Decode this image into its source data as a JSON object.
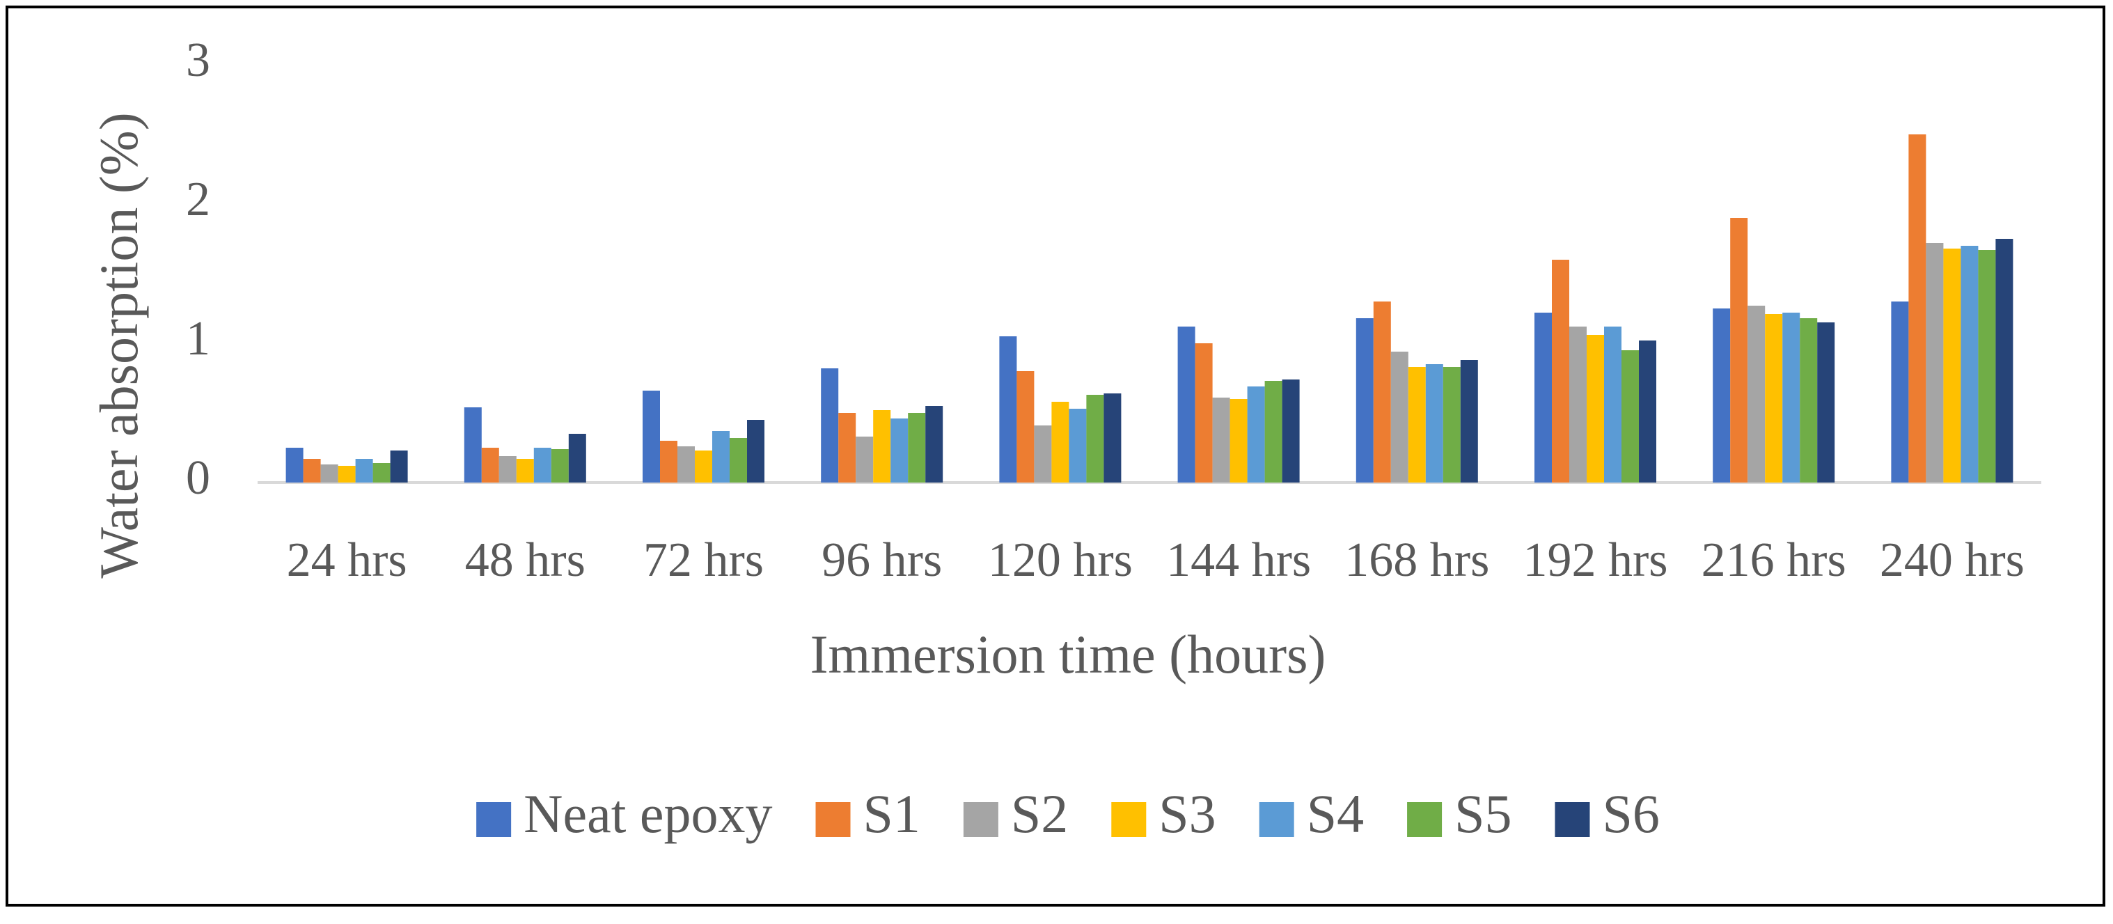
{
  "chart_data": {
    "type": "bar",
    "xlabel": "Immersion time (hours)",
    "ylabel": "Water absorption (%)",
    "categories": [
      "24 hrs",
      "48 hrs",
      "72 hrs",
      "96 hrs",
      "120 hrs",
      "144 hrs",
      "168 hrs",
      "192 hrs",
      "216 hrs",
      "240 hrs"
    ],
    "series": [
      {
        "name": "Neat epoxy",
        "color": "#4472c4",
        "values": [
          0.25,
          0.54,
          0.66,
          0.82,
          1.05,
          1.12,
          1.18,
          1.22,
          1.25,
          1.3
        ]
      },
      {
        "name": "S1",
        "color": "#ed7d31",
        "values": [
          0.17,
          0.25,
          0.3,
          0.5,
          0.8,
          1.0,
          1.3,
          1.6,
          1.9,
          2.5
        ]
      },
      {
        "name": "S2",
        "color": "#a5a5a5",
        "values": [
          0.13,
          0.19,
          0.26,
          0.33,
          0.41,
          0.61,
          0.94,
          1.12,
          1.27,
          1.72
        ]
      },
      {
        "name": "S3",
        "color": "#ffc000",
        "values": [
          0.12,
          0.17,
          0.23,
          0.52,
          0.58,
          0.6,
          0.83,
          1.06,
          1.21,
          1.68
        ]
      },
      {
        "name": "S4",
        "color": "#5b9bd5",
        "values": [
          0.17,
          0.25,
          0.37,
          0.46,
          0.53,
          0.69,
          0.85,
          1.12,
          1.22,
          1.7
        ]
      },
      {
        "name": "S5",
        "color": "#70ad47",
        "values": [
          0.14,
          0.24,
          0.32,
          0.5,
          0.63,
          0.73,
          0.83,
          0.95,
          1.18,
          1.67
        ]
      },
      {
        "name": "S6",
        "color": "#264478",
        "values": [
          0.23,
          0.35,
          0.45,
          0.55,
          0.64,
          0.74,
          0.88,
          1.02,
          1.15,
          1.75
        ]
      }
    ],
    "ylim": [
      0,
      3
    ],
    "yticks": [
      0,
      1,
      2,
      3
    ],
    "grid": false,
    "legend": "bottom"
  }
}
